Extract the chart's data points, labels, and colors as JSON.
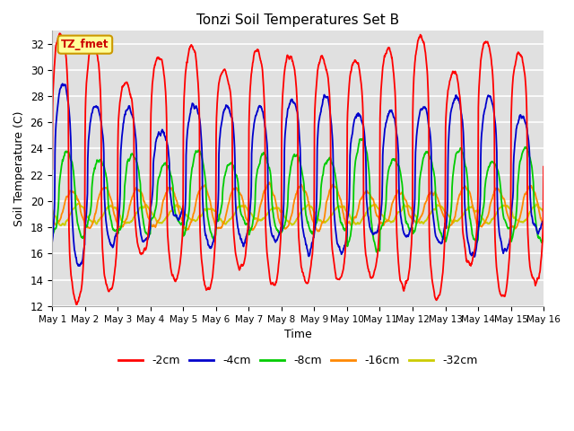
{
  "title": "Tonzi Soil Temperatures Set B",
  "xlabel": "Time",
  "ylabel": "Soil Temperature (C)",
  "ylim": [
    12,
    33
  ],
  "yticks": [
    12,
    14,
    16,
    18,
    20,
    22,
    24,
    26,
    28,
    30,
    32
  ],
  "xlim_days": 15,
  "annotation_text": "TZ_fmet",
  "annotation_color": "#cc0000",
  "annotation_bg": "#ffff99",
  "annotation_border": "#cc9900",
  "series_colors": {
    "-2cm": "#ff0000",
    "-4cm": "#0000cc",
    "-8cm": "#00cc00",
    "-16cm": "#ff8800",
    "-32cm": "#cccc00"
  },
  "background_color": "#e0e0e0",
  "grid_color": "#ffffff",
  "tick_labels": [
    "May 1",
    "May 2",
    "May 3",
    "May 4",
    "May 5",
    "May 6",
    "May 7",
    "May 8",
    "May 9",
    "May 10",
    "May 11",
    "May 12",
    "May 13",
    "May 14",
    "May 15",
    "May 16"
  ],
  "amplitudes": {
    "-2cm": 8.5,
    "-4cm": 5.5,
    "-8cm": 3.2,
    "-16cm": 1.5,
    "-32cm": 0.7
  },
  "baselines": {
    "-2cm": 22.5,
    "-4cm": 22.0,
    "-8cm": 20.5,
    "-16cm": 19.5,
    "-32cm": 19.0
  },
  "phase_lags": {
    "-2cm": 0.0,
    "-4cm": 0.08,
    "-8cm": 0.18,
    "-16cm": 0.32,
    "-32cm": 0.5
  },
  "peak_sharpness": {
    "-2cm": 4.0,
    "-4cm": 3.0,
    "-8cm": 2.0,
    "-16cm": 1.3,
    "-32cm": 1.0
  }
}
